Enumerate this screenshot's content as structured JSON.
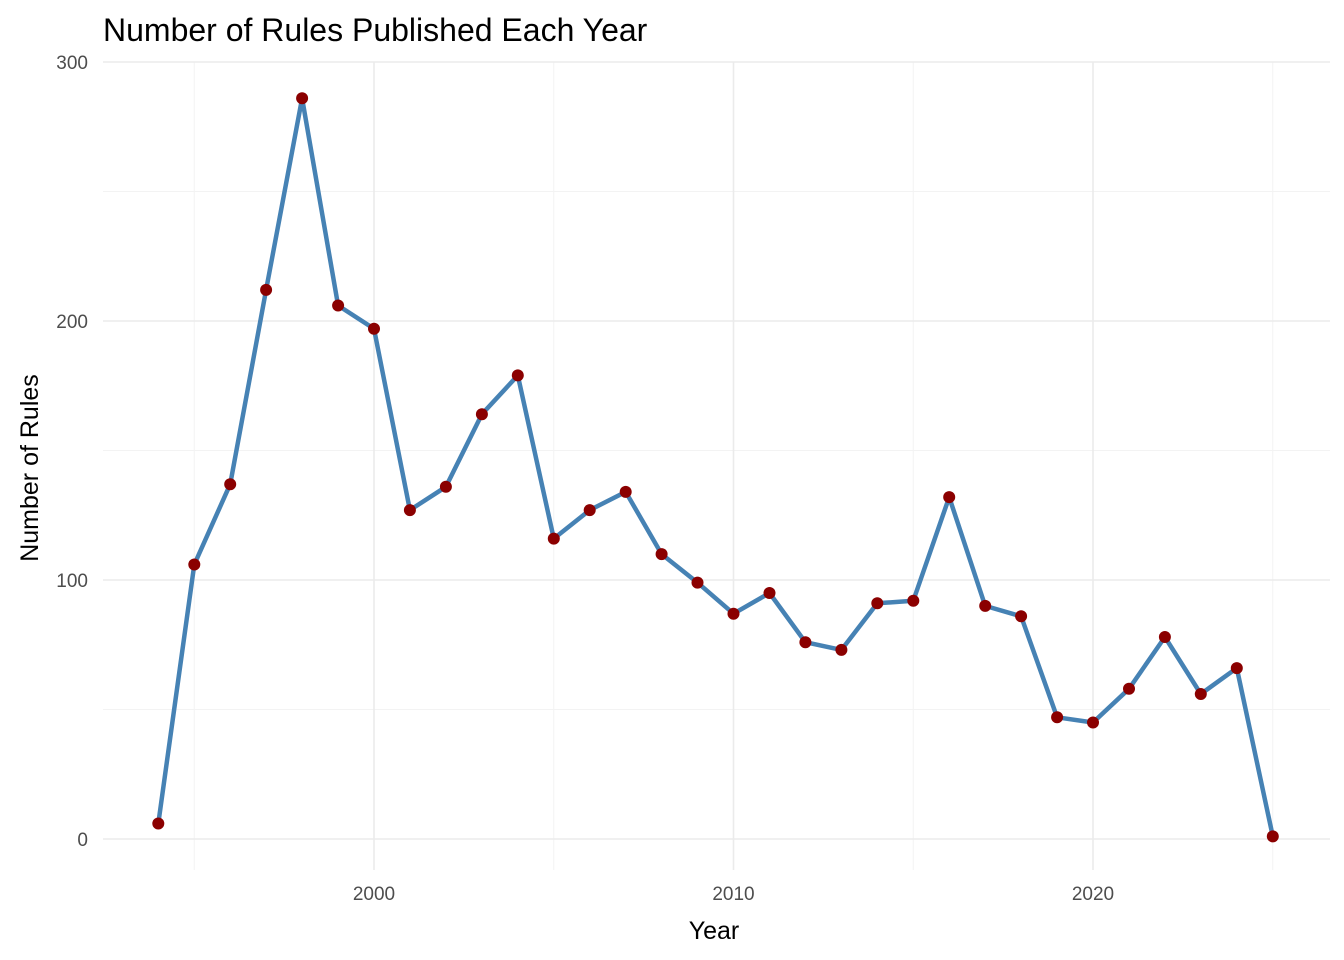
{
  "chart_data": {
    "type": "line",
    "title": "Number of Rules Published Each Year",
    "xlabel": "Year",
    "ylabel": "Number of Rules",
    "xlim": [
      1993,
      2026
    ],
    "ylim": [
      -12,
      300
    ],
    "x_ticks": [
      2000,
      2010,
      2020
    ],
    "y_ticks": [
      0,
      100,
      200,
      300
    ],
    "grid": true,
    "legend": "none",
    "colors": {
      "line": "#4682b4",
      "point": "#8b0000"
    },
    "series": [
      {
        "x": [
          1994,
          1995,
          1996,
          1997,
          1998,
          1999,
          2000,
          2001,
          2002,
          2003,
          2004,
          2005,
          2006,
          2007,
          2008,
          2009,
          2010,
          2011,
          2012,
          2013,
          2014,
          2015,
          2016,
          2017,
          2018,
          2019,
          2020,
          2021,
          2022,
          2023,
          2024,
          2025
        ],
        "y": [
          6,
          106,
          137,
          212,
          286,
          206,
          197,
          127,
          136,
          164,
          179,
          116,
          127,
          134,
          110,
          99,
          87,
          95,
          76,
          73,
          91,
          92,
          132,
          90,
          86,
          47,
          45,
          58,
          78,
          56,
          66,
          1
        ]
      }
    ]
  }
}
